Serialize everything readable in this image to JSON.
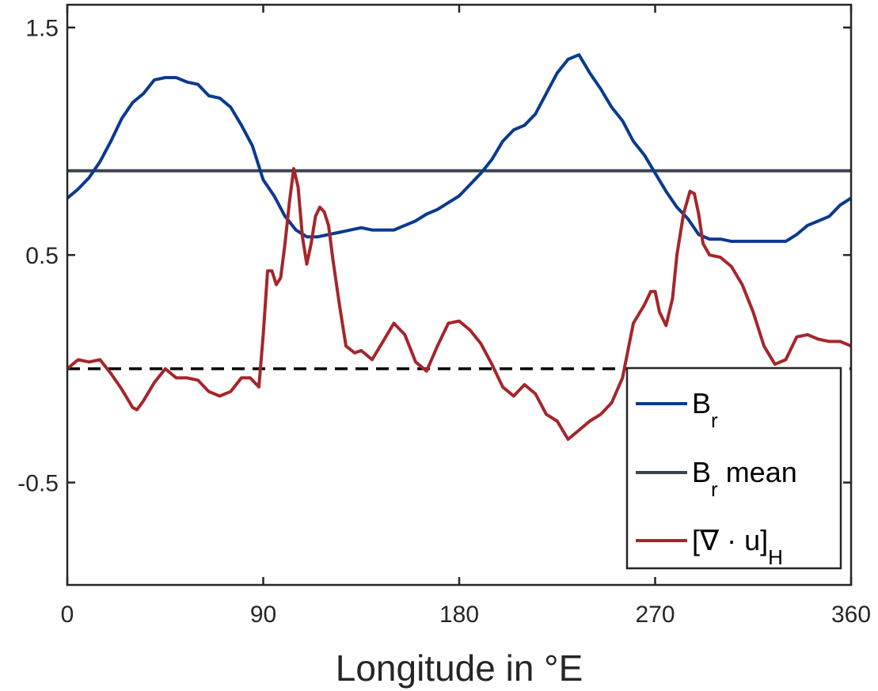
{
  "chart_data": {
    "type": "line",
    "xlabel": "Longitude in °E",
    "ylabel": "",
    "title": "",
    "xlim": [
      0,
      360
    ],
    "ylim": [
      -0.95,
      1.6
    ],
    "xticks": [
      {
        "value": 0,
        "label": "0"
      },
      {
        "value": 90,
        "label": "90"
      },
      {
        "value": 180,
        "label": "180"
      },
      {
        "value": 270,
        "label": "270"
      },
      {
        "value": 360,
        "label": "360"
      }
    ],
    "yticks": [
      {
        "value": -0.5,
        "label": "-0.5"
      },
      {
        "value": 0.5,
        "label": "0.5"
      },
      {
        "value": 1.5,
        "label": "1.5"
      }
    ],
    "grid": false,
    "legend_position": "bottom-right",
    "legend": [
      {
        "series": "br",
        "main": "B",
        "sub": "r",
        "rest": ""
      },
      {
        "series": "br_mean",
        "main": "B",
        "sub": "r",
        "rest": " mean"
      },
      {
        "series": "div",
        "main": "[∇ · u]",
        "sub": "H",
        "rest": ""
      }
    ],
    "series": [
      {
        "key": "br",
        "color": "#0b3a8f",
        "x": [
          0,
          5,
          10,
          15,
          20,
          25,
          30,
          35,
          40,
          45,
          50,
          55,
          60,
          65,
          70,
          75,
          80,
          85,
          90,
          95,
          100,
          105,
          110,
          115,
          120,
          125,
          130,
          135,
          140,
          145,
          150,
          155,
          160,
          165,
          170,
          175,
          180,
          185,
          190,
          195,
          200,
          205,
          210,
          215,
          220,
          225,
          230,
          235,
          240,
          245,
          250,
          255,
          260,
          265,
          270,
          275,
          280,
          285,
          290,
          295,
          300,
          305,
          310,
          315,
          320,
          325,
          330,
          335,
          340,
          345,
          350,
          355,
          360
        ],
        "y": [
          0.75,
          0.79,
          0.84,
          0.91,
          1.0,
          1.1,
          1.17,
          1.21,
          1.27,
          1.28,
          1.28,
          1.26,
          1.25,
          1.2,
          1.19,
          1.15,
          1.07,
          0.98,
          0.83,
          0.76,
          0.67,
          0.61,
          0.58,
          0.58,
          0.59,
          0.6,
          0.61,
          0.62,
          0.61,
          0.61,
          0.61,
          0.63,
          0.65,
          0.68,
          0.7,
          0.73,
          0.76,
          0.81,
          0.86,
          0.92,
          1.0,
          1.05,
          1.07,
          1.12,
          1.21,
          1.3,
          1.36,
          1.38,
          1.3,
          1.23,
          1.15,
          1.09,
          1.0,
          0.94,
          0.86,
          0.78,
          0.71,
          0.66,
          0.59,
          0.57,
          0.57,
          0.56,
          0.56,
          0.56,
          0.56,
          0.56,
          0.56,
          0.59,
          0.63,
          0.65,
          0.67,
          0.72,
          0.75
        ]
      },
      {
        "key": "br_mean",
        "color": "#3b4451",
        "x": [
          0,
          360
        ],
        "y": [
          0.87,
          0.87
        ]
      },
      {
        "key": "div",
        "color": "#a5262b",
        "x": [
          0,
          5,
          10,
          15,
          20,
          25,
          30,
          32,
          35,
          40,
          45,
          50,
          55,
          60,
          65,
          70,
          75,
          80,
          84,
          88,
          90,
          92,
          94,
          96,
          98,
          100,
          102,
          104,
          106,
          108,
          110,
          112,
          114,
          116,
          118,
          120,
          122,
          125,
          128,
          132,
          135,
          140,
          145,
          150,
          155,
          160,
          165,
          170,
          175,
          180,
          185,
          190,
          195,
          200,
          205,
          210,
          215,
          220,
          225,
          230,
          235,
          240,
          245,
          250,
          255,
          260,
          265,
          268,
          270,
          272,
          275,
          278,
          280,
          283,
          286,
          288,
          290,
          292,
          295,
          300,
          305,
          310,
          315,
          320,
          325,
          330,
          335,
          340,
          345,
          350,
          355,
          360
        ],
        "y": [
          0.0,
          0.04,
          0.03,
          0.04,
          -0.02,
          -0.09,
          -0.17,
          -0.18,
          -0.14,
          -0.06,
          0.0,
          -0.04,
          -0.04,
          -0.05,
          -0.1,
          -0.12,
          -0.1,
          -0.04,
          -0.04,
          -0.08,
          0.15,
          0.43,
          0.43,
          0.37,
          0.4,
          0.55,
          0.73,
          0.88,
          0.8,
          0.58,
          0.46,
          0.55,
          0.67,
          0.71,
          0.69,
          0.63,
          0.48,
          0.28,
          0.1,
          0.07,
          0.08,
          0.04,
          0.12,
          0.2,
          0.15,
          0.03,
          -0.01,
          0.1,
          0.2,
          0.21,
          0.17,
          0.11,
          0.02,
          -0.08,
          -0.12,
          -0.07,
          -0.11,
          -0.2,
          -0.23,
          -0.31,
          -0.27,
          -0.23,
          -0.2,
          -0.15,
          -0.04,
          0.2,
          0.28,
          0.34,
          0.34,
          0.25,
          0.19,
          0.31,
          0.5,
          0.68,
          0.78,
          0.77,
          0.68,
          0.55,
          0.5,
          0.49,
          0.45,
          0.37,
          0.25,
          0.1,
          0.02,
          0.04,
          0.14,
          0.15,
          0.13,
          0.12,
          0.12,
          0.1
        ]
      },
      {
        "key": "zero",
        "color": "#000000",
        "dashed": true,
        "x": [
          0,
          360
        ],
        "y": [
          0,
          0
        ]
      }
    ]
  }
}
